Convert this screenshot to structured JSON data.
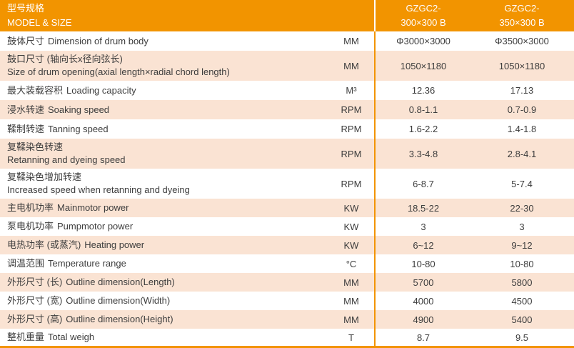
{
  "colors": {
    "header_orange": "#f29400",
    "row_peach": "#fae3d3",
    "text_dark": "#3d3d3d",
    "header_text": "#ffffff"
  },
  "table": {
    "header": {
      "title_zh": "型号规格",
      "title_en": "MODEL & SIZE",
      "columns": [
        {
          "line1": "GZGC2-",
          "line2": "300×300 B"
        },
        {
          "line1": "GZGC2-",
          "line2": "350×300 B"
        }
      ]
    },
    "rows": [
      {
        "zh": "鼓体尺寸",
        "en": "Dimension of drum body",
        "unit": "MM",
        "v1": "Φ3000×3000",
        "v2": "Φ3500×3000"
      },
      {
        "zh": "鼓口尺寸 (轴向长x径向弦长)",
        "en": "Size of drum opening(axial length×radial chord length)",
        "unit": "MM",
        "v1": "1050×1180",
        "v2": "1050×1180"
      },
      {
        "zh": "最大装载容积",
        "en": "Loading capacity",
        "unit": "M³",
        "v1": "12.36",
        "v2": "17.13"
      },
      {
        "zh": "浸水转速",
        "en": "Soaking speed",
        "unit": "RPM",
        "v1": "0.8-1.1",
        "v2": "0.7-0.9"
      },
      {
        "zh": "鞣制转速",
        "en": "Tanning speed",
        "unit": "RPM",
        "v1": "1.6-2.2",
        "v2": "1.4-1.8"
      },
      {
        "zh": "复鞣染色转速",
        "en": "Retanning and dyeing speed",
        "unit": "RPM",
        "v1": "3.3-4.8",
        "v2": "2.8-4.1"
      },
      {
        "zh": "复鞣染色增加转速",
        "en": "Increased speed when retanning and dyeing",
        "unit": "RPM",
        "v1": "6-8.7",
        "v2": "5-7.4"
      },
      {
        "zh": "主电机功率",
        "en": "Mainmotor power",
        "unit": "KW",
        "v1": "18.5-22",
        "v2": "22-30"
      },
      {
        "zh": "泵电机功率",
        "en": "Pumpmotor power",
        "unit": "KW",
        "v1": "3",
        "v2": "3"
      },
      {
        "zh": "电热功率 (或蒸汽)",
        "en": "Heating power",
        "unit": "KW",
        "v1": "6~12",
        "v2": "9~12"
      },
      {
        "zh": "调温范围",
        "en": "Temperature range",
        "unit": "°C",
        "v1": "10-80",
        "v2": "10-80"
      },
      {
        "zh": "外形尺寸 (长)",
        "en": "Outline dimension(Length)",
        "unit": "MM",
        "v1": "5700",
        "v2": "5800"
      },
      {
        "zh": "外形尺寸 (宽)",
        "en": "Outline dimension(Width)",
        "unit": "MM",
        "v1": "4000",
        "v2": "4500"
      },
      {
        "zh": "外形尺寸 (高)",
        "en": "Outline dimension(Height)",
        "unit": "MM",
        "v1": "4900",
        "v2": "5400"
      },
      {
        "zh": "整机重量",
        "en": "Total weigh",
        "unit": "T",
        "v1": "8.7",
        "v2": "9.5"
      }
    ]
  }
}
